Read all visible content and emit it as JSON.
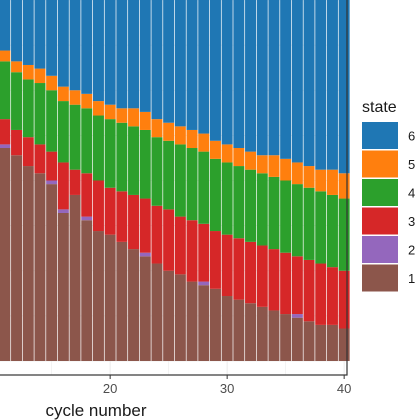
{
  "chart_data": {
    "type": "bar",
    "stacked": true,
    "normalized": true,
    "x": [
      11,
      12,
      13,
      14,
      15,
      16,
      17,
      18,
      19,
      20,
      21,
      22,
      23,
      24,
      25,
      26,
      27,
      28,
      29,
      30,
      31,
      32,
      33,
      34,
      35,
      36,
      37,
      38,
      39,
      40
    ],
    "xlabel": "cycle number",
    "x_ticks": [
      "20",
      "30",
      "40"
    ],
    "x_tick_values": [
      20,
      30,
      40
    ],
    "xlim": [
      10.5,
      40.5
    ],
    "ylim": [
      0,
      1
    ],
    "grid": true,
    "legend": {
      "title": "state",
      "position": "right"
    },
    "series": [
      {
        "name": "1",
        "color": "#8c564b",
        "values": [
          0.59,
          0.57,
          0.54,
          0.52,
          0.49,
          0.41,
          0.46,
          0.39,
          0.36,
          0.35,
          0.33,
          0.31,
          0.29,
          0.27,
          0.25,
          0.24,
          0.22,
          0.21,
          0.2,
          0.18,
          0.17,
          0.16,
          0.15,
          0.14,
          0.13,
          0.12,
          0.11,
          0.1,
          0.1,
          0.09
        ]
      },
      {
        "name": "2",
        "color": "#9467bd",
        "values": [
          0.01,
          0.0,
          0.0,
          0.0,
          0.01,
          0.01,
          0.0,
          0.01,
          0.0,
          0.0,
          0.0,
          0.0,
          0.01,
          0.0,
          0.0,
          0.0,
          0.0,
          0.01,
          0.0,
          0.0,
          0.0,
          0.0,
          0.0,
          0.0,
          0.0,
          0.01,
          0.0,
          0.0,
          0.0,
          0.0
        ]
      },
      {
        "name": "3",
        "color": "#d62728",
        "values": [
          0.07,
          0.07,
          0.08,
          0.08,
          0.08,
          0.13,
          0.07,
          0.12,
          0.14,
          0.13,
          0.14,
          0.15,
          0.15,
          0.16,
          0.17,
          0.16,
          0.17,
          0.16,
          0.16,
          0.17,
          0.17,
          0.17,
          0.17,
          0.17,
          0.17,
          0.16,
          0.17,
          0.17,
          0.16,
          0.16
        ]
      },
      {
        "name": "4",
        "color": "#2ca02c",
        "values": [
          0.16,
          0.16,
          0.16,
          0.17,
          0.17,
          0.17,
          0.18,
          0.18,
          0.18,
          0.19,
          0.19,
          0.19,
          0.19,
          0.19,
          0.19,
          0.2,
          0.2,
          0.2,
          0.2,
          0.2,
          0.2,
          0.2,
          0.2,
          0.2,
          0.2,
          0.2,
          0.2,
          0.2,
          0.2,
          0.2
        ]
      },
      {
        "name": "5",
        "color": "#ff7f0e",
        "values": [
          0.03,
          0.03,
          0.04,
          0.04,
          0.04,
          0.04,
          0.04,
          0.04,
          0.04,
          0.04,
          0.04,
          0.05,
          0.05,
          0.05,
          0.05,
          0.05,
          0.05,
          0.05,
          0.05,
          0.05,
          0.05,
          0.05,
          0.05,
          0.06,
          0.06,
          0.06,
          0.06,
          0.06,
          0.07,
          0.07
        ]
      },
      {
        "name": "6",
        "color": "#1f77b4",
        "values": [
          0.14,
          0.17,
          0.18,
          0.19,
          0.21,
          0.24,
          0.25,
          0.26,
          0.28,
          0.29,
          0.3,
          0.3,
          0.31,
          0.33,
          0.34,
          0.35,
          0.36,
          0.37,
          0.39,
          0.4,
          0.41,
          0.42,
          0.43,
          0.43,
          0.44,
          0.45,
          0.46,
          0.47,
          0.47,
          0.48
        ]
      }
    ]
  }
}
